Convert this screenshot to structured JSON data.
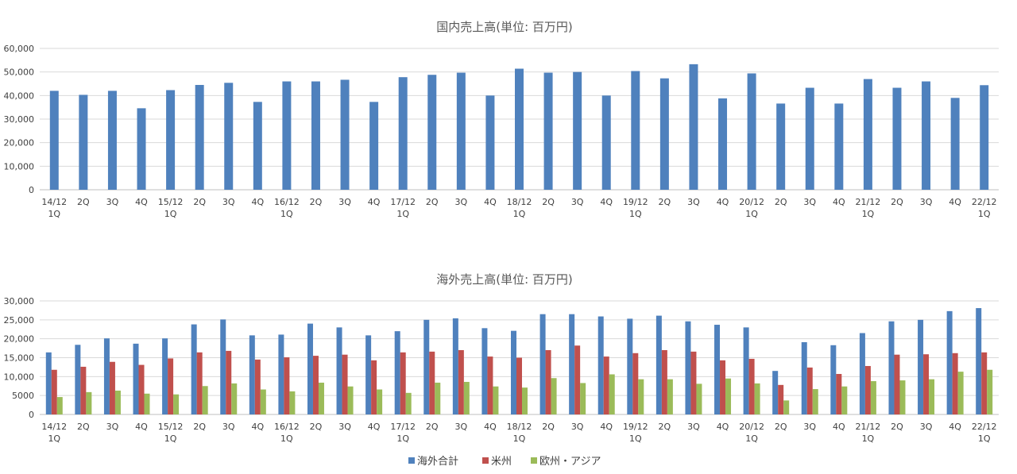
{
  "colors": {
    "overseas_total": "#4f81bd",
    "americas": "#c0504d",
    "europe_asia": "#9bbb59"
  },
  "chart_data": [
    {
      "type": "bar",
      "title": "国内売上高(単位: 百万円)",
      "categories": [
        [
          "14/12",
          "1Q"
        ],
        [
          "2Q"
        ],
        [
          "3Q"
        ],
        [
          "4Q"
        ],
        [
          "15/12",
          "1Q"
        ],
        [
          "2Q"
        ],
        [
          "3Q"
        ],
        [
          "4Q"
        ],
        [
          "16/12",
          "1Q"
        ],
        [
          "2Q"
        ],
        [
          "3Q"
        ],
        [
          "4Q"
        ],
        [
          "17/12",
          "1Q"
        ],
        [
          "2Q"
        ],
        [
          "3Q"
        ],
        [
          "4Q"
        ],
        [
          "18/12",
          "1Q"
        ],
        [
          "2Q"
        ],
        [
          "3Q"
        ],
        [
          "4Q"
        ],
        [
          "19/12",
          "1Q"
        ],
        [
          "2Q"
        ],
        [
          "3Q"
        ],
        [
          "4Q"
        ],
        [
          "20/12",
          "1Q"
        ],
        [
          "2Q"
        ],
        [
          "3Q"
        ],
        [
          "4Q"
        ],
        [
          "21/12",
          "1Q"
        ],
        [
          "2Q"
        ],
        [
          "3Q"
        ],
        [
          "4Q"
        ],
        [
          "22/12",
          "1Q"
        ]
      ],
      "ylim": [
        0,
        60000
      ],
      "yticks": [
        "0",
        "10,000",
        "20,000",
        "30,000",
        "40,000",
        "50,000",
        "60,000"
      ],
      "grid": true,
      "series": [
        {
          "color_key": "overseas_total",
          "values": [
            42000,
            40300,
            42000,
            34600,
            42300,
            44500,
            45400,
            37300,
            46000,
            46000,
            46700,
            37300,
            47800,
            48800,
            49700,
            40000,
            51400,
            49700,
            50000,
            40000,
            50400,
            47300,
            53300,
            38800,
            49400,
            36600,
            43300,
            36600,
            47000,
            43300,
            46000,
            39000,
            44400
          ]
        }
      ]
    },
    {
      "type": "bar",
      "title": "海外売上高(単位: 百万円)",
      "categories": [
        [
          "14/12",
          "1Q"
        ],
        [
          "2Q"
        ],
        [
          "3Q"
        ],
        [
          "4Q"
        ],
        [
          "15/12",
          "1Q"
        ],
        [
          "2Q"
        ],
        [
          "3Q"
        ],
        [
          "4Q"
        ],
        [
          "16/12",
          "1Q"
        ],
        [
          "2Q"
        ],
        [
          "3Q"
        ],
        [
          "4Q"
        ],
        [
          "17/12",
          "1Q"
        ],
        [
          "2Q"
        ],
        [
          "3Q"
        ],
        [
          "4Q"
        ],
        [
          "18/12",
          "1Q"
        ],
        [
          "2Q"
        ],
        [
          "3Q"
        ],
        [
          "4Q"
        ],
        [
          "19/12",
          "1Q"
        ],
        [
          "2Q"
        ],
        [
          "3Q"
        ],
        [
          "4Q"
        ],
        [
          "20/12",
          "1Q"
        ],
        [
          "2Q"
        ],
        [
          "3Q"
        ],
        [
          "4Q"
        ],
        [
          "21/12",
          "1Q"
        ],
        [
          "2Q"
        ],
        [
          "3Q"
        ],
        [
          "4Q"
        ],
        [
          "22/12",
          "1Q"
        ]
      ],
      "ylim": [
        0,
        30000
      ],
      "yticks": [
        "0",
        "5000",
        "10,000",
        "15,000",
        "20,000",
        "25,000",
        "30,000"
      ],
      "grid": true,
      "legend_position": "bottom",
      "series": [
        {
          "name": "海外合計",
          "color_key": "overseas_total",
          "values": [
            16400,
            18400,
            20100,
            18700,
            20100,
            23800,
            25100,
            20900,
            21100,
            24000,
            23000,
            20900,
            22000,
            25000,
            25400,
            22800,
            22100,
            26500,
            26500,
            25900,
            25300,
            26100,
            24600,
            23700,
            23000,
            11500,
            19100,
            18300,
            21500,
            24600,
            25000,
            27300,
            28100
          ]
        },
        {
          "name": "米州",
          "color_key": "americas",
          "values": [
            11800,
            12600,
            13900,
            13100,
            14800,
            16400,
            16800,
            14500,
            15100,
            15500,
            15800,
            14300,
            16400,
            16600,
            17000,
            15300,
            15000,
            17000,
            18200,
            15300,
            16200,
            17000,
            16600,
            14300,
            14700,
            7800,
            12400,
            10700,
            12800,
            15800,
            15900,
            16200,
            16400
          ]
        },
        {
          "name": "欧州・アジア",
          "color_key": "europe_asia",
          "values": [
            4600,
            5900,
            6300,
            5500,
            5300,
            7500,
            8200,
            6600,
            6100,
            8400,
            7400,
            6600,
            5700,
            8400,
            8600,
            7400,
            7100,
            9600,
            8300,
            10600,
            9300,
            9300,
            8100,
            9500,
            8200,
            3700,
            6700,
            7400,
            8800,
            9000,
            9300,
            11300,
            11800
          ]
        }
      ]
    }
  ]
}
